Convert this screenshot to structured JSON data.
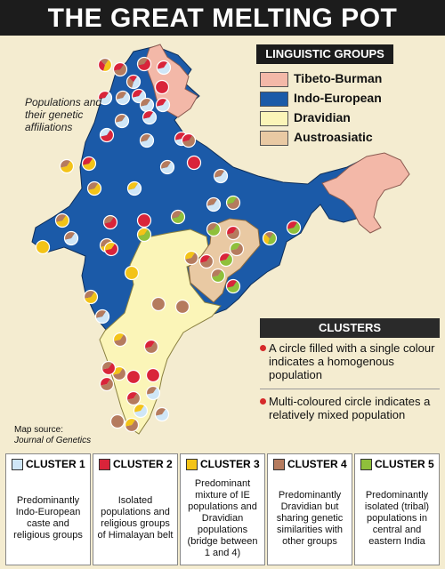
{
  "title": "THE GREAT MELTING POT",
  "side_note": "Populations and their genetic affiliations",
  "legend": {
    "heading": "LINGUISTIC GROUPS",
    "items": [
      {
        "label": "Tibeto-Burman",
        "color": "#f3b8a8"
      },
      {
        "label": "Indo-European",
        "color": "#1b5aa8"
      },
      {
        "label": "Dravidian",
        "color": "#fbf5b8"
      },
      {
        "label": "Austroasiatic",
        "color": "#e9c9a3"
      }
    ]
  },
  "clusters_panel": {
    "heading": "CLUSTERS",
    "notes": [
      "A circle filled with a single colour indicates a homogenous population",
      "Multi-coloured circle indicates a relatively mixed population"
    ]
  },
  "source": {
    "label": "Map source:",
    "name": "Journal of Genetics"
  },
  "clusters": [
    {
      "title": "CLUSTER 1",
      "color": "#cfe6f7",
      "desc": "Predominantly Indo-European caste and religious groups"
    },
    {
      "title": "CLUSTER 2",
      "color": "#d9243a",
      "desc": "Isolated populations and religious groups of Himalayan belt"
    },
    {
      "title": "CLUSTER 3",
      "color": "#f3c318",
      "desc": "Predominant mixture of IE populations and Dravidian populations (bridge between 1 and 4)"
    },
    {
      "title": "CLUSTER 4",
      "color": "#b57b5e",
      "desc": "Predominantly Dravidian but sharing genetic similarities with other groups"
    },
    {
      "title": "CLUSTER 5",
      "color": "#8fc03b",
      "desc": "Predominantly isolated (tribal) populations in central and eastern India"
    }
  ],
  "population_pies": [
    {
      "name": "p1",
      "c": [
        3,
        2,
        4
      ]
    },
    {
      "name": "p2",
      "c": [
        4,
        2
      ]
    },
    {
      "name": "p3",
      "c": [
        2,
        4
      ]
    },
    {
      "name": "p4",
      "c": [
        1,
        2
      ]
    },
    {
      "name": "p5",
      "c": [
        1,
        4,
        2
      ]
    },
    {
      "name": "p6",
      "c": [
        2
      ]
    },
    {
      "name": "p7",
      "c": [
        1,
        2
      ]
    },
    {
      "name": "p8",
      "c": [
        1,
        4
      ]
    },
    {
      "name": "p9",
      "c": [
        1,
        2
      ]
    },
    {
      "name": "p10",
      "c": [
        1,
        4
      ]
    },
    {
      "name": "p11",
      "c": [
        1,
        2
      ]
    },
    {
      "name": "p12",
      "c": [
        1,
        2
      ]
    },
    {
      "name": "p13",
      "c": [
        1,
        4
      ]
    },
    {
      "name": "p14",
      "c": [
        2,
        1
      ]
    },
    {
      "name": "p15",
      "c": [
        1,
        4
      ]
    },
    {
      "name": "p16",
      "c": [
        1,
        2
      ]
    },
    {
      "name": "p17",
      "c": [
        3,
        4
      ]
    },
    {
      "name": "p18",
      "c": [
        3,
        2
      ]
    },
    {
      "name": "p19",
      "c": [
        2
      ]
    },
    {
      "name": "p20",
      "c": [
        1,
        4
      ]
    },
    {
      "name": "p21",
      "c": [
        1,
        4
      ]
    },
    {
      "name": "p22",
      "c": [
        3,
        4
      ]
    },
    {
      "name": "p23",
      "c": [
        1,
        3
      ]
    },
    {
      "name": "p24",
      "c": [
        1,
        4
      ]
    },
    {
      "name": "p25",
      "c": [
        3,
        4
      ]
    },
    {
      "name": "p26",
      "c": [
        2,
        4
      ]
    },
    {
      "name": "p27",
      "c": [
        2
      ]
    },
    {
      "name": "p28",
      "c": [
        5,
        4
      ]
    },
    {
      "name": "p29",
      "c": [
        5,
        3
      ]
    },
    {
      "name": "p30",
      "c": [
        1,
        4
      ]
    },
    {
      "name": "p31",
      "c": [
        3
      ]
    },
    {
      "name": "p32",
      "c": [
        3,
        4
      ]
    },
    {
      "name": "p33",
      "c": [
        2,
        3
      ]
    },
    {
      "name": "p34",
      "c": [
        5,
        4
      ]
    },
    {
      "name": "p35",
      "c": [
        4,
        2
      ]
    },
    {
      "name": "p36",
      "c": [
        5,
        2
      ]
    },
    {
      "name": "p37",
      "c": [
        4,
        5
      ]
    },
    {
      "name": "p38",
      "c": [
        5,
        3,
        4
      ]
    },
    {
      "name": "p39",
      "c": [
        5,
        2
      ]
    },
    {
      "name": "p40",
      "c": [
        3
      ]
    },
    {
      "name": "p41",
      "c": [
        4,
        2
      ]
    },
    {
      "name": "p42",
      "c": [
        5,
        2
      ]
    },
    {
      "name": "p43",
      "c": [
        3,
        4
      ]
    },
    {
      "name": "p44",
      "c": [
        4
      ]
    },
    {
      "name": "p45",
      "c": [
        1,
        4
      ]
    },
    {
      "name": "p46",
      "c": [
        4,
        3
      ]
    },
    {
      "name": "p47",
      "c": [
        4,
        2
      ]
    },
    {
      "name": "p48",
      "c": [
        4
      ]
    },
    {
      "name": "p49",
      "c": [
        5,
        4
      ]
    },
    {
      "name": "p50",
      "c": [
        4,
        3
      ]
    },
    {
      "name": "p51",
      "c": [
        2,
        4
      ]
    },
    {
      "name": "p52",
      "c": [
        2
      ]
    },
    {
      "name": "p53",
      "c": [
        4,
        2
      ]
    },
    {
      "name": "p54",
      "c": [
        2
      ]
    },
    {
      "name": "p55",
      "c": [
        4,
        2
      ]
    },
    {
      "name": "p56",
      "c": [
        1,
        4
      ]
    },
    {
      "name": "p57",
      "c": [
        1,
        3
      ]
    },
    {
      "name": "p58",
      "c": [
        1,
        4
      ]
    },
    {
      "name": "p59",
      "c": [
        4,
        3
      ]
    },
    {
      "name": "p60",
      "c": [
        4
      ]
    },
    {
      "name": "p61",
      "c": [
        4,
        2
      ]
    },
    {
      "name": "p62",
      "c": [
        4,
        5
      ]
    },
    {
      "name": "p63",
      "c": [
        4,
        3
      ]
    }
  ]
}
